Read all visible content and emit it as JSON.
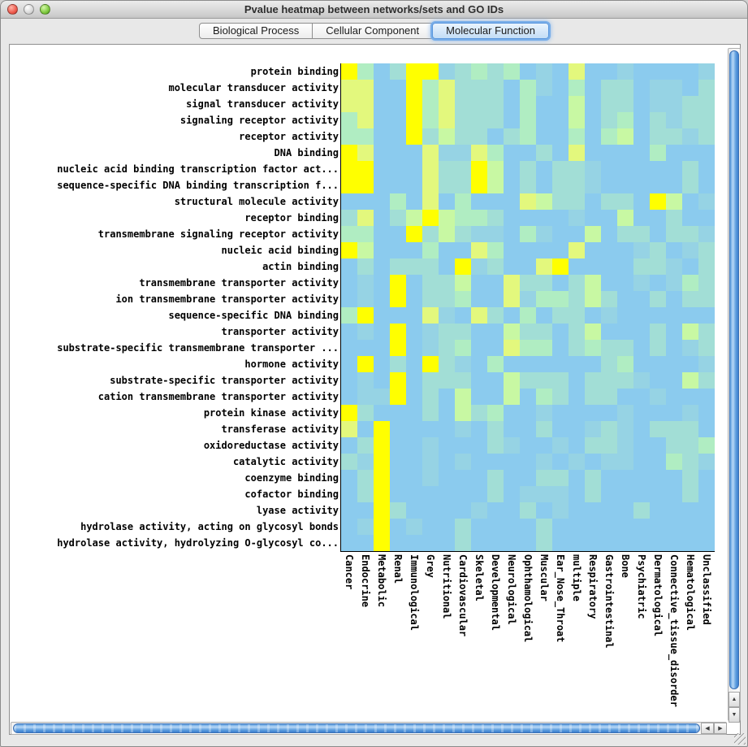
{
  "window": {
    "title": "Pvalue heatmap between networks/sets and GO IDs"
  },
  "tabs": [
    {
      "label": "Biological Process",
      "selected": false
    },
    {
      "label": "Cellular Component",
      "selected": false
    },
    {
      "label": "Molecular Function",
      "selected": true
    }
  ],
  "icons": {
    "scroll_up": "▲",
    "scroll_down": "▼",
    "scroll_left": "◀",
    "scroll_right": "▶"
  },
  "chart_data": {
    "type": "heatmap",
    "title": "Pvalue heatmap between networks/sets and GO IDs",
    "rows": [
      "protein binding",
      "molecular transducer activity",
      "signal transducer activity",
      "signaling receptor activity",
      "receptor activity",
      "DNA binding",
      "nucleic acid binding transcription factor act...",
      "sequence-specific DNA binding transcription f...",
      "structural molecule activity",
      "receptor binding",
      "transmembrane signaling receptor activity",
      "nucleic acid binding",
      "actin binding",
      "transmembrane transporter activity",
      "ion transmembrane transporter activity",
      "sequence-specific DNA binding",
      "transporter activity",
      "substrate-specific transmembrane transporter ...",
      "hormone activity",
      "substrate-specific transporter activity",
      "cation transmembrane transporter activity",
      "protein kinase activity",
      "transferase activity",
      "oxidoreductase activity",
      "catalytic activity",
      "coenzyme binding",
      "cofactor binding",
      "lyase activity",
      "hydrolase activity, acting on glycosyl bonds",
      "hydrolase activity, hydrolyzing O-glycosyl co..."
    ],
    "columns": [
      "Cancer",
      "Endocrine",
      "Metabolic",
      "Renal",
      "Immunological",
      "Grey",
      "Nutritional",
      "Cardiovascular",
      "Skeletal",
      "Developmental",
      "Neurological",
      "Ophthamological",
      "Muscular",
      "Ear_Nose_Throat",
      "multiple",
      "Respiratory",
      "Gastrointestinal",
      "Bone",
      "Psychiatric",
      "Dermatological",
      "Connective_tissue_disorder",
      "Hematological",
      "Unclassified"
    ],
    "palette": {
      "description": "0 = low (blue) to 6 = high (yellow)",
      "levels": [
        "#8BCBEE",
        "#96D3E4",
        "#A2DED6",
        "#B0EDC2",
        "#C8F8A3",
        "#E3F87D",
        "#FFFF00"
      ]
    },
    "values": [
      [
        6,
        3,
        0,
        2,
        6,
        6,
        1,
        2,
        3,
        2,
        3,
        0,
        1,
        0,
        5,
        0,
        0,
        1,
        0,
        0,
        0,
        0,
        1
      ],
      [
        5,
        5,
        0,
        0,
        6,
        3,
        5,
        2,
        2,
        2,
        0,
        3,
        1,
        0,
        3,
        0,
        2,
        2,
        0,
        1,
        1,
        0,
        2
      ],
      [
        5,
        5,
        0,
        0,
        6,
        3,
        5,
        2,
        2,
        2,
        0,
        3,
        0,
        0,
        4,
        0,
        2,
        2,
        0,
        1,
        1,
        2,
        2
      ],
      [
        3,
        5,
        0,
        0,
        6,
        3,
        5,
        2,
        2,
        2,
        0,
        3,
        0,
        0,
        4,
        0,
        2,
        3,
        0,
        2,
        1,
        2,
        2
      ],
      [
        3,
        3,
        0,
        0,
        6,
        2,
        4,
        2,
        2,
        0,
        2,
        3,
        0,
        0,
        3,
        0,
        3,
        4,
        0,
        2,
        2,
        1,
        2
      ],
      [
        6,
        5,
        0,
        0,
        0,
        5,
        1,
        1,
        5,
        3,
        0,
        0,
        2,
        0,
        5,
        0,
        0,
        0,
        0,
        3,
        0,
        0,
        0
      ],
      [
        6,
        6,
        0,
        0,
        0,
        5,
        2,
        2,
        6,
        4,
        0,
        2,
        0,
        2,
        2,
        1,
        0,
        0,
        0,
        0,
        0,
        2,
        0
      ],
      [
        6,
        6,
        0,
        0,
        0,
        5,
        2,
        2,
        6,
        4,
        0,
        2,
        0,
        2,
        2,
        1,
        0,
        0,
        0,
        0,
        0,
        2,
        0
      ],
      [
        0,
        0,
        0,
        3,
        0,
        5,
        0,
        3,
        0,
        0,
        0,
        5,
        4,
        2,
        2,
        0,
        2,
        2,
        0,
        6,
        4,
        0,
        1
      ],
      [
        2,
        5,
        0,
        2,
        4,
        6,
        4,
        3,
        3,
        2,
        0,
        0,
        0,
        0,
        1,
        0,
        0,
        4,
        0,
        0,
        2,
        0,
        0
      ],
      [
        3,
        3,
        0,
        0,
        6,
        2,
        4,
        2,
        1,
        1,
        0,
        3,
        1,
        0,
        0,
        4,
        0,
        2,
        2,
        0,
        2,
        2,
        1
      ],
      [
        6,
        4,
        0,
        0,
        0,
        3,
        0,
        0,
        5,
        3,
        0,
        0,
        0,
        0,
        5,
        0,
        0,
        0,
        1,
        2,
        0,
        1,
        2
      ],
      [
        0,
        2,
        0,
        2,
        2,
        2,
        0,
        6,
        1,
        2,
        0,
        0,
        5,
        6,
        0,
        0,
        0,
        0,
        2,
        2,
        1,
        0,
        2
      ],
      [
        0,
        1,
        0,
        6,
        0,
        2,
        2,
        4,
        0,
        0,
        5,
        2,
        2,
        0,
        2,
        4,
        0,
        0,
        1,
        0,
        1,
        3,
        2
      ],
      [
        0,
        1,
        0,
        6,
        0,
        2,
        2,
        3,
        0,
        0,
        5,
        1,
        3,
        3,
        2,
        4,
        2,
        0,
        0,
        2,
        0,
        2,
        2
      ],
      [
        3,
        6,
        0,
        0,
        0,
        5,
        1,
        0,
        5,
        2,
        0,
        3,
        0,
        2,
        2,
        0,
        1,
        0,
        0,
        0,
        0,
        0,
        0
      ],
      [
        0,
        1,
        0,
        6,
        0,
        1,
        2,
        2,
        0,
        0,
        4,
        2,
        2,
        0,
        2,
        4,
        0,
        0,
        0,
        2,
        0,
        4,
        2
      ],
      [
        0,
        0,
        0,
        6,
        0,
        1,
        2,
        3,
        0,
        0,
        5,
        3,
        3,
        0,
        2,
        3,
        2,
        2,
        0,
        2,
        0,
        1,
        2
      ],
      [
        0,
        6,
        0,
        2,
        0,
        6,
        2,
        1,
        0,
        3,
        0,
        0,
        0,
        0,
        0,
        0,
        2,
        3,
        0,
        0,
        0,
        0,
        1
      ],
      [
        0,
        1,
        0,
        6,
        0,
        2,
        2,
        2,
        0,
        0,
        4,
        2,
        2,
        2,
        0,
        2,
        2,
        2,
        1,
        0,
        0,
        4,
        2
      ],
      [
        0,
        1,
        1,
        6,
        0,
        2,
        0,
        4,
        0,
        0,
        4,
        0,
        3,
        2,
        0,
        2,
        2,
        0,
        0,
        1,
        0,
        0,
        0
      ],
      [
        6,
        2,
        0,
        0,
        0,
        2,
        0,
        4,
        2,
        3,
        0,
        0,
        1,
        0,
        0,
        0,
        0,
        1,
        0,
        0,
        0,
        1,
        0
      ],
      [
        5,
        0,
        6,
        0,
        0,
        0,
        0,
        1,
        0,
        2,
        0,
        0,
        2,
        0,
        0,
        1,
        2,
        1,
        0,
        2,
        2,
        2,
        0
      ],
      [
        0,
        2,
        6,
        0,
        0,
        1,
        0,
        0,
        0,
        2,
        1,
        0,
        0,
        1,
        0,
        2,
        2,
        1,
        0,
        0,
        2,
        2,
        3
      ],
      [
        2,
        1,
        6,
        0,
        0,
        1,
        0,
        1,
        0,
        0,
        0,
        0,
        1,
        0,
        1,
        0,
        1,
        1,
        0,
        0,
        3,
        2,
        1
      ],
      [
        0,
        2,
        6,
        0,
        0,
        1,
        0,
        0,
        0,
        2,
        0,
        0,
        2,
        2,
        0,
        2,
        0,
        0,
        0,
        0,
        0,
        2,
        0
      ],
      [
        0,
        2,
        6,
        0,
        0,
        0,
        0,
        0,
        0,
        2,
        0,
        1,
        1,
        1,
        0,
        2,
        0,
        0,
        0,
        0,
        0,
        2,
        0
      ],
      [
        0,
        0,
        6,
        2,
        0,
        0,
        0,
        0,
        1,
        0,
        0,
        2,
        0,
        1,
        0,
        0,
        0,
        0,
        2,
        0,
        0,
        0,
        0
      ],
      [
        0,
        1,
        6,
        0,
        1,
        0,
        0,
        2,
        0,
        0,
        0,
        0,
        2,
        0,
        0,
        0,
        0,
        0,
        0,
        0,
        0,
        0,
        0
      ],
      [
        0,
        0,
        6,
        0,
        0,
        0,
        0,
        2,
        0,
        0,
        0,
        0,
        2,
        0,
        0,
        0,
        0,
        0,
        0,
        0,
        0,
        0,
        0
      ]
    ]
  }
}
